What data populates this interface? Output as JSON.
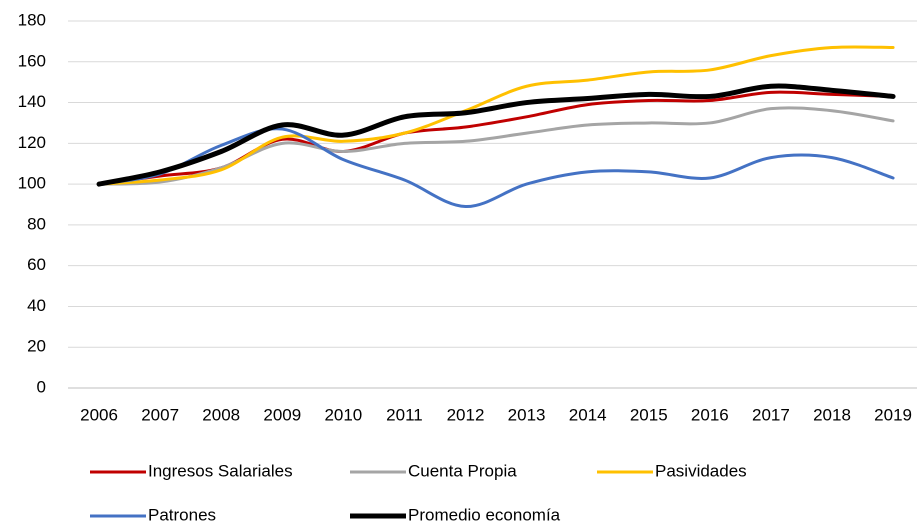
{
  "chart_data": {
    "type": "line",
    "categories": [
      "2006",
      "2007",
      "2008",
      "2009",
      "2010",
      "2011",
      "2012",
      "2013",
      "2014",
      "2015",
      "2016",
      "2017",
      "2018",
      "2019"
    ],
    "series": [
      {
        "name": "Ingresos Salariales",
        "color": "#c00000",
        "values": [
          100,
          104,
          108,
          122,
          116,
          125,
          128,
          133,
          139,
          141,
          141,
          145,
          144,
          143
        ]
      },
      {
        "name": "Cuenta Propia",
        "color": "#a5a5a5",
        "values": [
          100,
          101,
          108,
          120,
          116,
          120,
          121,
          125,
          129,
          130,
          130,
          137,
          136,
          131
        ]
      },
      {
        "name": "Pasividades",
        "color": "#ffc000",
        "values": [
          100,
          102,
          107,
          123,
          121,
          125,
          136,
          148,
          151,
          155,
          156,
          163,
          167,
          167
        ]
      },
      {
        "name": "Patrones",
        "color": "#4472c4",
        "values": [
          100,
          105,
          119,
          127,
          112,
          102,
          89,
          100,
          106,
          106,
          103,
          113,
          113,
          103
        ]
      },
      {
        "name": "Promedio economía",
        "color": "#000000",
        "values": [
          100,
          106,
          116,
          129,
          124,
          133,
          135,
          140,
          142,
          144,
          143,
          148,
          146,
          143
        ]
      }
    ],
    "ylim": [
      0,
      180
    ],
    "yticks": [
      0,
      20,
      40,
      60,
      80,
      100,
      120,
      140,
      160,
      180
    ],
    "grid": true
  }
}
